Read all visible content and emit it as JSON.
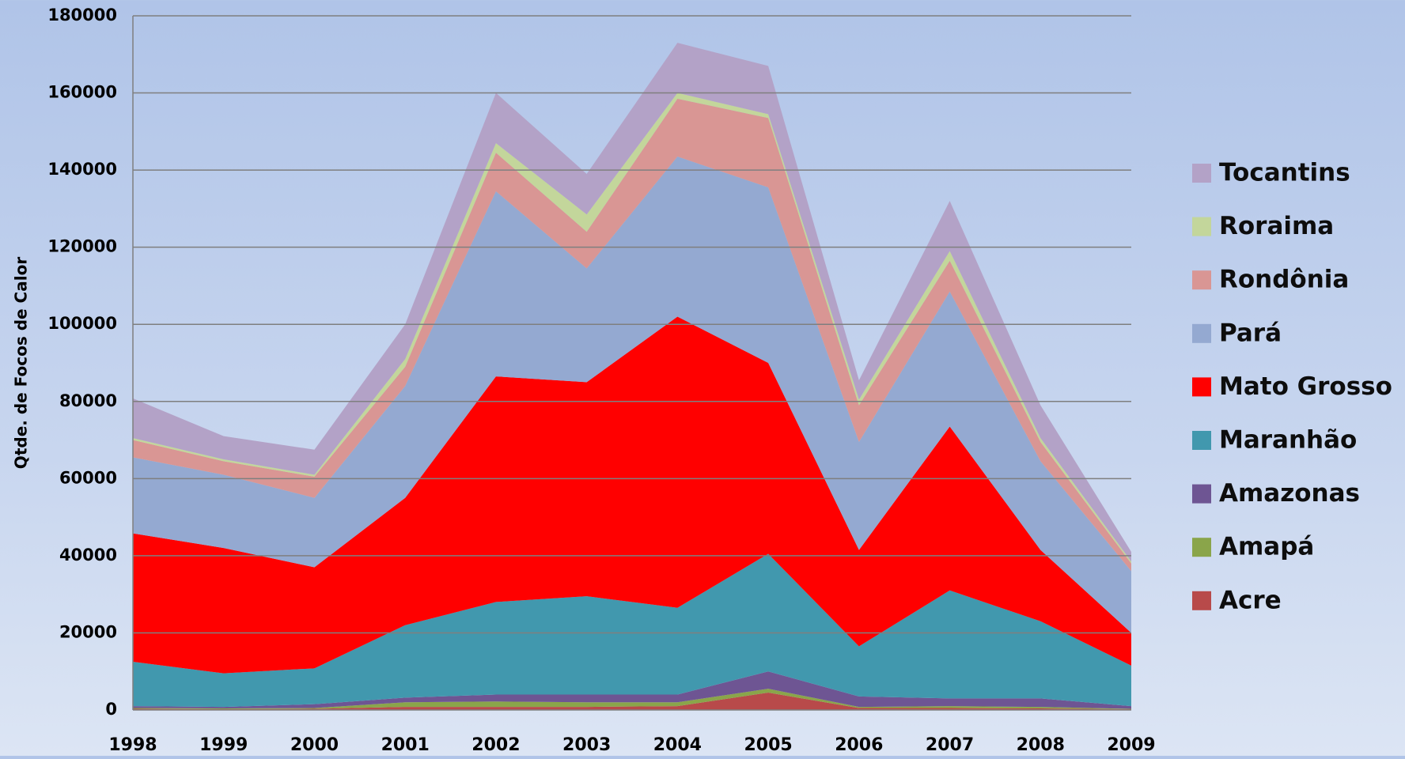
{
  "chart_data": {
    "type": "stacked_area",
    "y_label": "Qtde. de Focos de Calor",
    "categories": [
      "1998",
      "1999",
      "2000",
      "2001",
      "2002",
      "2003",
      "2004",
      "2005",
      "2006",
      "2007",
      "2008",
      "2009"
    ],
    "ylim": [
      0,
      180000
    ],
    "yticks": [
      0,
      20000,
      40000,
      60000,
      80000,
      100000,
      120000,
      140000,
      160000,
      180000
    ],
    "grid": true,
    "legend": "right",
    "series": [
      {
        "name": "Acre",
        "color": "#b84a4a",
        "values": [
          300,
          200,
          300,
          800,
          800,
          800,
          1000,
          4500,
          500,
          500,
          400,
          200
        ]
      },
      {
        "name": "Amapá",
        "color": "#8aa54a",
        "values": [
          200,
          200,
          200,
          1200,
          1400,
          1200,
          1000,
          1000,
          300,
          500,
          400,
          100
        ]
      },
      {
        "name": "Amazonas",
        "color": "#6e5593",
        "values": [
          500,
          400,
          1000,
          1200,
          1800,
          2000,
          2000,
          4500,
          2700,
          2000,
          2200,
          700
        ]
      },
      {
        "name": "Maranhão",
        "color": "#4198ae",
        "values": [
          11500,
          8700,
          9300,
          18800,
          24000,
          25500,
          22500,
          30500,
          13000,
          28000,
          20000,
          10500
        ]
      },
      {
        "name": "Mato Grosso",
        "color": "#ff0000",
        "values": [
          33300,
          32500,
          26200,
          33000,
          58500,
          55500,
          75500,
          49500,
          25000,
          42500,
          18500,
          8500
        ]
      },
      {
        "name": "Pará",
        "color": "#94a9d1",
        "values": [
          19700,
          19000,
          18000,
          29000,
          48000,
          29500,
          41500,
          45500,
          28000,
          35000,
          23000,
          16000
        ]
      },
      {
        "name": "Rondônia",
        "color": "#d99694",
        "values": [
          4500,
          3500,
          5500,
          5000,
          10000,
          9500,
          15000,
          18000,
          9500,
          8000,
          5000,
          2000
        ]
      },
      {
        "name": "Roraima",
        "color": "#c3d69b",
        "values": [
          500,
          500,
          500,
          2000,
          2500,
          4500,
          1500,
          1000,
          1500,
          2500,
          1000,
          500
        ]
      },
      {
        "name": "Tocantins",
        "color": "#b3a2c7",
        "values": [
          10300,
          6000,
          6500,
          9000,
          13000,
          10500,
          13000,
          12500,
          5000,
          13000,
          8500,
          2500
        ]
      }
    ]
  }
}
